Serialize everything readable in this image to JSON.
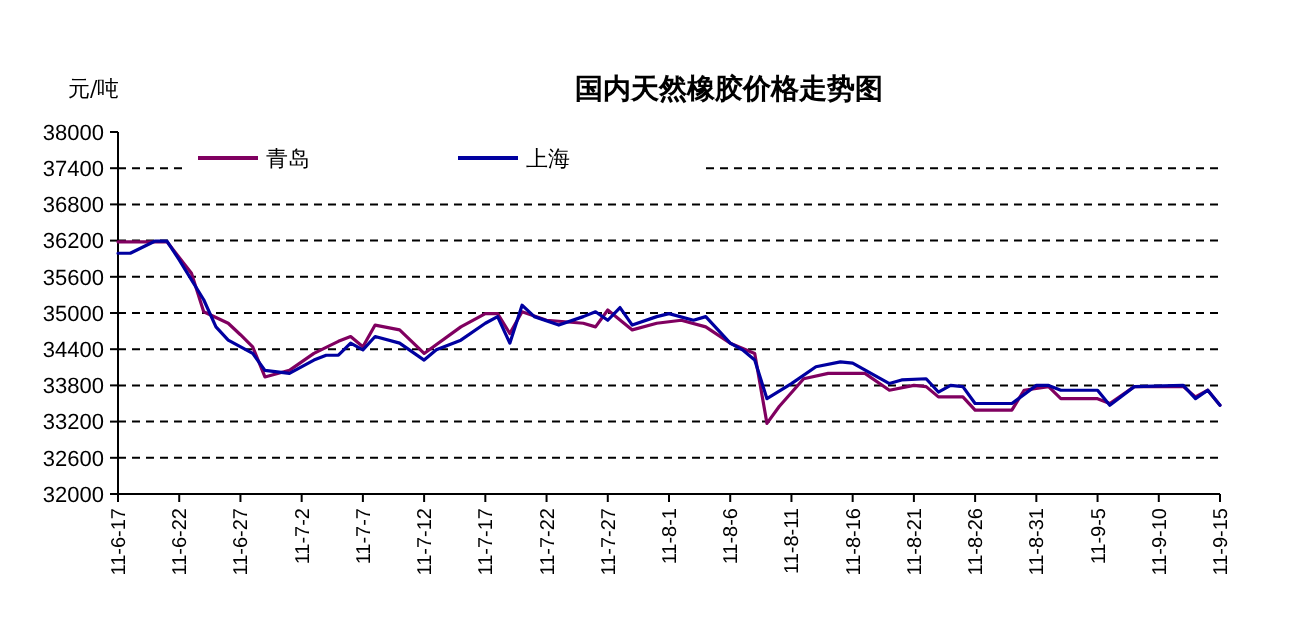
{
  "chart_data": {
    "type": "line",
    "title": "国内天然橡胶价格走势图",
    "ylabel": "元/吨",
    "xlim": [
      "--06-17",
      "--09-15"
    ],
    "xticks": [
      {
        "value": "--06-17",
        "label": "11-6-17"
      },
      {
        "value": "--06-22",
        "label": "11-6-22"
      },
      {
        "value": "--06-27",
        "label": "11-6-27"
      },
      {
        "value": "--07-02",
        "label": "11-7-2"
      },
      {
        "value": "--07-07",
        "label": "11-7-7"
      },
      {
        "value": "--07-12",
        "label": "11-7-12"
      },
      {
        "value": "--07-17",
        "label": "11-7-17"
      },
      {
        "value": "--07-22",
        "label": "11-7-22"
      },
      {
        "value": "--07-27",
        "label": "11-7-27"
      },
      {
        "value": "--08-01",
        "label": "11-8-1"
      },
      {
        "value": "--08-06",
        "label": "11-8-6"
      },
      {
        "value": "--08-11",
        "label": "11-8-11"
      },
      {
        "value": "--08-16",
        "label": "11-8-16"
      },
      {
        "value": "--08-21",
        "label": "11-8-21"
      },
      {
        "value": "--08-26",
        "label": "11-8-26"
      },
      {
        "value": "--08-31",
        "label": "11-8-31"
      },
      {
        "value": "--09-05",
        "label": "11-9-5"
      },
      {
        "value": "--09-10",
        "label": "11-9-10"
      },
      {
        "value": "--09-15",
        "label": "11-9-15"
      }
    ],
    "ylim": [
      32000,
      38000
    ],
    "yticks": [
      32000,
      32600,
      33200,
      33800,
      34400,
      35000,
      35600,
      36200,
      36800,
      37400,
      38000
    ],
    "grid": "y",
    "legend": "top left",
    "marker": "none",
    "line_style": "solid",
    "series": [
      {
        "name": "青岛",
        "color": "#800060",
        "x": [
          "--06-17",
          "--06-21",
          "--06-23",
          "--06-24",
          "--06-26",
          "--06-27",
          "--06-28",
          "--06-29",
          "--07-01",
          "--07-03",
          "--07-05",
          "--07-06",
          "--07-07",
          "--07-08",
          "--07-10",
          "--07-12",
          "--07-15",
          "--07-17",
          "--07-18",
          "--07-19",
          "--07-20",
          "--07-22",
          "--07-25",
          "--07-26",
          "--07-27",
          "--07-29",
          "--07-31",
          "--08-02",
          "--08-04",
          "--08-06",
          "--08-08",
          "--08-09",
          "--08-10",
          "--08-12",
          "--08-14",
          "--08-17",
          "--08-19",
          "--08-21",
          "--08-22",
          "--08-23",
          "--08-25",
          "--08-26",
          "--08-29",
          "--08-30",
          "--09-01",
          "--09-02",
          "--09-05",
          "--09-06",
          "--09-08",
          "--09-12",
          "--09-13",
          "--09-14",
          "--09-15"
        ],
        "values": [
          36180,
          36180,
          35660,
          35020,
          34830,
          34640,
          34440,
          33940,
          34050,
          34330,
          34530,
          34610,
          34440,
          34800,
          34720,
          34330,
          34770,
          34990,
          34990,
          34660,
          35020,
          34880,
          34830,
          34770,
          35050,
          34720,
          34830,
          34880,
          34770,
          34500,
          34330,
          33170,
          33450,
          33910,
          34000,
          34000,
          33720,
          33800,
          33780,
          33610,
          33610,
          33390,
          33390,
          33720,
          33780,
          33580,
          33580,
          33500,
          33780,
          33780,
          33610,
          33720,
          33470
        ]
      },
      {
        "name": "上海",
        "color": "#0000a0",
        "x": [
          "--06-17",
          "--06-18",
          "--06-20",
          "--06-21",
          "--06-22",
          "--06-24",
          "--06-25",
          "--06-26",
          "--06-28",
          "--06-29",
          "--07-01",
          "--07-03",
          "--07-04",
          "--07-05",
          "--07-06",
          "--07-07",
          "--07-08",
          "--07-10",
          "--07-12",
          "--07-13",
          "--07-15",
          "--07-17",
          "--07-18",
          "--07-19",
          "--07-20",
          "--07-21",
          "--07-23",
          "--07-25",
          "--07-26",
          "--07-27",
          "--07-28",
          "--07-29",
          "--07-31",
          "--08-01",
          "--08-03",
          "--08-04",
          "--08-06",
          "--08-07",
          "--08-08",
          "--08-09",
          "--08-11",
          "--08-13",
          "--08-15",
          "--08-16",
          "--08-19",
          "--08-20",
          "--08-22",
          "--08-23",
          "--08-24",
          "--08-25",
          "--08-26",
          "--08-29",
          "--08-31",
          "--09-01",
          "--09-02",
          "--09-05",
          "--09-06",
          "--09-08",
          "--09-12",
          "--09-13",
          "--09-14",
          "--09-15"
        ],
        "values": [
          35990,
          35990,
          36190,
          36190,
          35880,
          35220,
          34770,
          34550,
          34330,
          34050,
          34000,
          34220,
          34300,
          34300,
          34500,
          34390,
          34610,
          34500,
          34220,
          34390,
          34550,
          34830,
          34940,
          34500,
          35130,
          34940,
          34800,
          34940,
          35020,
          34880,
          35090,
          34800,
          34940,
          34990,
          34880,
          34940,
          34500,
          34390,
          34220,
          33580,
          33830,
          34110,
          34190,
          34170,
          33830,
          33890,
          33910,
          33690,
          33800,
          33780,
          33500,
          33500,
          33800,
          33800,
          33720,
          33720,
          33470,
          33780,
          33800,
          33580,
          33720,
          33470
        ]
      }
    ]
  }
}
